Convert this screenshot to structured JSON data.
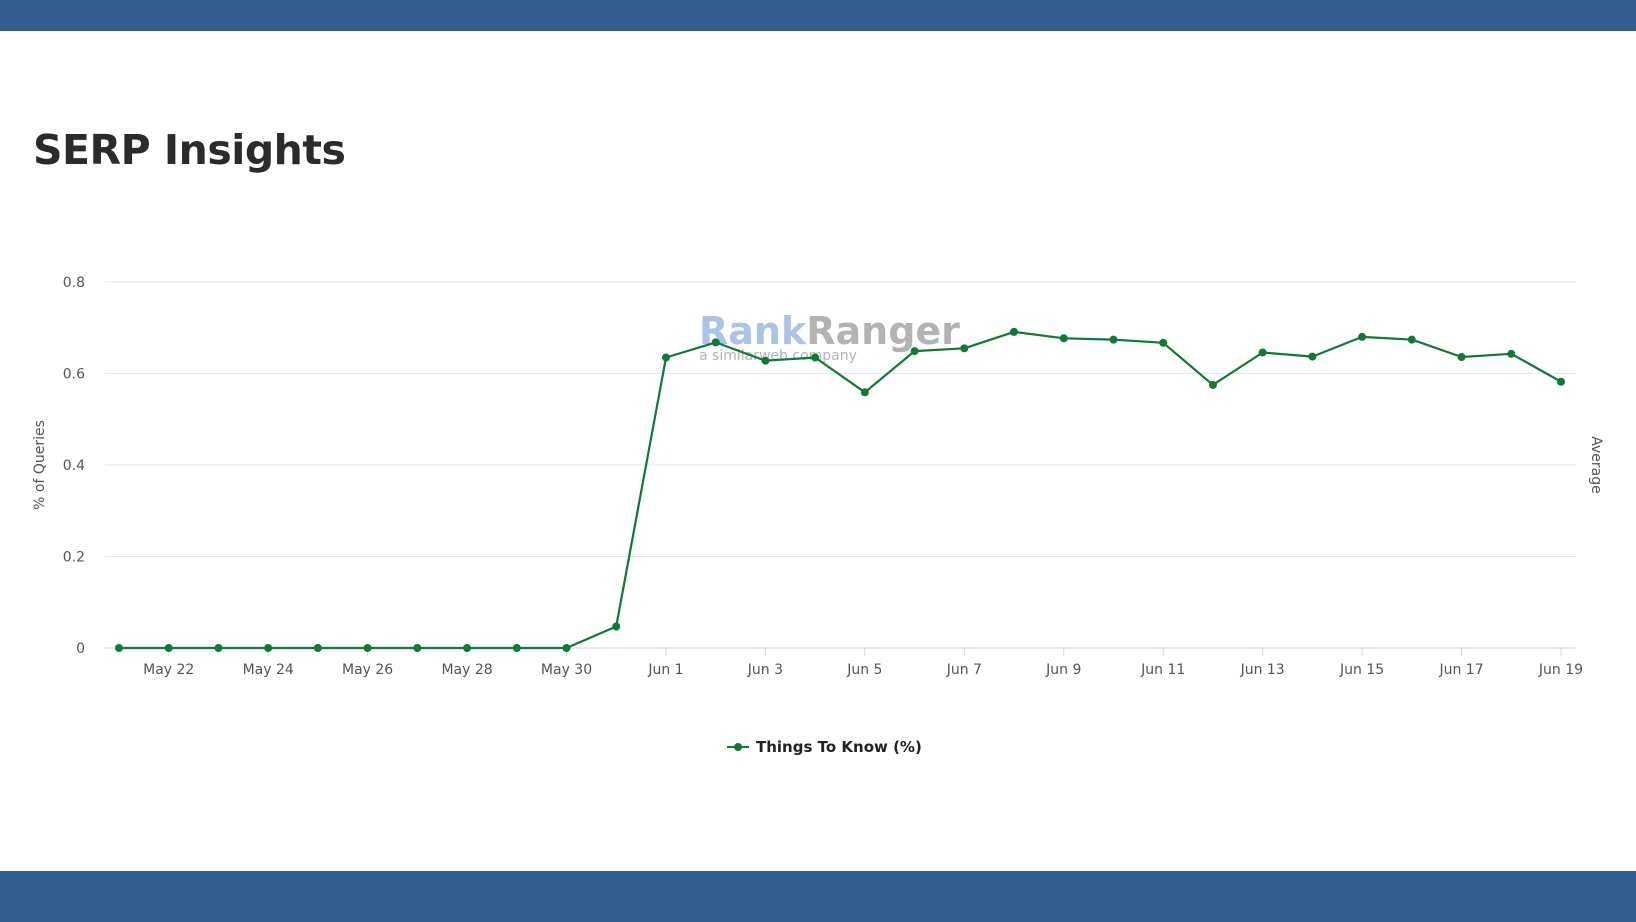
{
  "header": {
    "title": "SERP Insights"
  },
  "colors": {
    "bar": "#325e8f",
    "series": "#0e7a33",
    "grid": "#e6e6e6",
    "axis": "#ccd6eb",
    "watermark_blue": "#a9c4e6",
    "watermark_gray": "#b3b3b3"
  },
  "watermark": {
    "brand_a": "Rank",
    "brand_b": "Ranger",
    "tagline": "a similarweb company"
  },
  "chart_data": {
    "type": "line",
    "title": "",
    "xlabel": "",
    "ylabel": "% of Queries",
    "ylabel_right": "Average",
    "ylim": [
      0,
      0.8
    ],
    "yticks": [
      0,
      0.2,
      0.4,
      0.6,
      0.8
    ],
    "yticklabels": [
      "0",
      "0.2",
      "0.4",
      "0.6",
      "0.8"
    ],
    "x": [
      "May 21",
      "May 22",
      "May 23",
      "May 24",
      "May 25",
      "May 26",
      "May 27",
      "May 28",
      "May 29",
      "May 30",
      "May 31",
      "Jun 1",
      "Jun 2",
      "Jun 3",
      "Jun 4",
      "Jun 5",
      "Jun 6",
      "Jun 7",
      "Jun 8",
      "Jun 9",
      "Jun 10",
      "Jun 11",
      "Jun 12",
      "Jun 13",
      "Jun 14",
      "Jun 15",
      "Jun 16",
      "Jun 17",
      "Jun 18",
      "Jun 19"
    ],
    "xticklabels": [
      "May 22",
      "May 24",
      "May 26",
      "May 28",
      "May 30",
      "Jun 1",
      "Jun 3",
      "Jun 5",
      "Jun 7",
      "Jun 9",
      "Jun 11",
      "Jun 13",
      "Jun 15",
      "Jun 17",
      "Jun 19"
    ],
    "legend_position": "bottom-center",
    "grid": true,
    "series": [
      {
        "name": "Things To Know (%)",
        "values": [
          0,
          0,
          0,
          0,
          0,
          0,
          0,
          0,
          0,
          0,
          0.047,
          0.635,
          0.668,
          0.628,
          0.635,
          0.559,
          0.649,
          0.655,
          0.691,
          0.677,
          0.674,
          0.667,
          0.575,
          0.646,
          0.637,
          0.68,
          0.674,
          0.636,
          0.643,
          0.582
        ]
      }
    ]
  }
}
